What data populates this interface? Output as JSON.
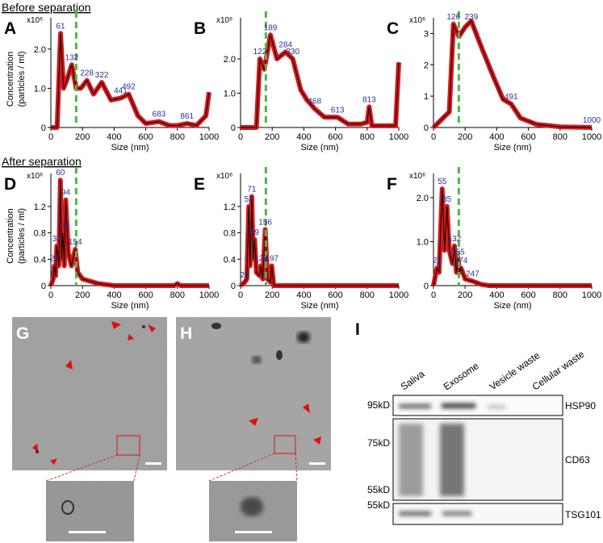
{
  "sections": [
    "Before separation",
    "After separation"
  ],
  "chart_data": [
    {
      "type": "line",
      "panel": "A",
      "ylabel": [
        "Concentration",
        "(particles / ml)"
      ],
      "xlabel": "Size (nm)",
      "y_multiplier": "x10⁶",
      "color": "#000000",
      "band_color": "#d7191c",
      "reference_line": {
        "x": 160,
        "color": "#4cb848"
      },
      "x": [
        0,
        40,
        61,
        80,
        100,
        132,
        160,
        190,
        228,
        270,
        322,
        380,
        441,
        492,
        550,
        600,
        683,
        750,
        800,
        861,
        920,
        980,
        1000
      ],
      "values": [
        0,
        0,
        2.4,
        1.0,
        1.2,
        1.6,
        1.0,
        1.0,
        1.2,
        0.85,
        1.15,
        0.7,
        0.75,
        0.85,
        0.3,
        0.1,
        0.15,
        0.05,
        0.05,
        0.1,
        0.05,
        0.3,
        0.9
      ],
      "peaks": [
        61,
        132,
        228,
        322,
        441,
        492,
        683,
        861
      ],
      "xlim": [
        0,
        1000
      ],
      "xticks": [
        0,
        200,
        400,
        600,
        800,
        1000
      ],
      "ylim": [
        0,
        2.8
      ],
      "yticks": [
        0,
        {
          "value": 1,
          "label": "1.0"
        },
        {
          "value": 2,
          "label": "2.0"
        }
      ]
    },
    {
      "type": "line",
      "panel": "B",
      "xlabel": "Size (nm)",
      "y_multiplier": "x10⁶",
      "color": "#000000",
      "band_color": "#d7191c",
      "reference_line": {
        "x": 160,
        "color": "#4cb848"
      },
      "x": [
        0,
        100,
        122,
        150,
        189,
        230,
        284,
        330,
        380,
        420,
        468,
        530,
        613,
        680,
        760,
        800,
        813,
        830,
        980,
        1000
      ],
      "values": [
        0,
        0,
        2.0,
        1.7,
        2.7,
        2.0,
        2.2,
        2.0,
        1.1,
        0.8,
        0.55,
        0.3,
        0.3,
        0.1,
        0.1,
        0.15,
        0.6,
        0.05,
        0.05,
        1.9
      ],
      "peaks": [
        122,
        189,
        284,
        330,
        468,
        613,
        813
      ],
      "xlim": [
        0,
        1000
      ],
      "xticks": [
        0,
        200,
        400,
        600,
        800,
        1000
      ],
      "ylim": [
        0,
        3.2
      ],
      "yticks": [
        0,
        {
          "value": 1,
          "label": "1.0"
        },
        {
          "value": 2,
          "label": "2.0"
        }
      ]
    },
    {
      "type": "line",
      "panel": "C",
      "xlabel": "Size (nm)",
      "y_multiplier": "x10⁶",
      "color": "#000000",
      "band_color": "#d7191c",
      "reference_line": {
        "x": 160,
        "color": "#4cb848"
      },
      "x": [
        0,
        100,
        126,
        160,
        200,
        239,
        300,
        380,
        440,
        491,
        550,
        650,
        800,
        1000
      ],
      "values": [
        0,
        0.5,
        3.3,
        2.9,
        3.2,
        3.4,
        2.6,
        1.6,
        0.9,
        0.75,
        0.3,
        0.1,
        0.02,
        0
      ],
      "peaks": [
        126,
        239,
        491,
        1000
      ],
      "xlim": [
        0,
        1000
      ],
      "xticks": [
        0,
        200,
        400,
        600,
        800,
        1000
      ],
      "ylim": [
        0,
        3.5
      ],
      "yticks": [
        0,
        1,
        2,
        3
      ]
    },
    {
      "type": "line",
      "panel": "D",
      "ylabel": [
        "Concentration",
        "(particles / ml)"
      ],
      "xlabel": "Size (nm)",
      "y_multiplier": "x10⁶",
      "color": "#000000",
      "band_color": "#d7191c",
      "reference_line": {
        "x": 160,
        "color": "#4cb848"
      },
      "x": [
        0,
        15,
        22,
        30,
        37,
        50,
        60,
        68,
        76,
        85,
        94,
        110,
        130,
        154,
        170,
        200,
        300,
        400,
        780,
        800,
        820,
        1000
      ],
      "values": [
        0,
        0.1,
        0.3,
        0.15,
        0.6,
        0.3,
        1.6,
        0.4,
        0.8,
        0.3,
        1.3,
        0.5,
        0.3,
        0.55,
        0.2,
        0.1,
        0.03,
        0,
        0,
        0.03,
        0,
        0
      ],
      "peaks": [
        22,
        37,
        60,
        76,
        94,
        154
      ],
      "xlim": [
        0,
        1000
      ],
      "xticks": [
        0,
        200,
        400,
        600,
        800,
        1000
      ],
      "ylim": [
        0,
        1.7
      ],
      "yticks": [
        0,
        0.4,
        0.8,
        1.2
      ]
    },
    {
      "type": "line",
      "panel": "E",
      "xlabel": "Size (nm)",
      "y_multiplier": "x10⁶",
      "color": "#000000",
      "band_color": "#d7191c",
      "reference_line": {
        "x": 160,
        "color": "#4cb848"
      },
      "x": [
        0,
        26,
        40,
        52,
        60,
        71,
        80,
        89,
        100,
        120,
        129,
        140,
        156,
        170,
        190,
        197,
        210,
        1000
      ],
      "values": [
        0,
        0.05,
        0.1,
        1.2,
        0.3,
        1.35,
        0.4,
        0.7,
        0.2,
        0.15,
        0.3,
        0.1,
        0.85,
        0.1,
        0.05,
        0.3,
        0,
        0
      ],
      "peaks": [
        26,
        52,
        71,
        89,
        129,
        156,
        197
      ],
      "xlim": [
        0,
        1000
      ],
      "xticks": [
        0,
        200,
        400,
        600,
        800,
        1000
      ],
      "ylim": [
        0,
        1.7
      ],
      "yticks": [
        0,
        0.4,
        0.8,
        1.2
      ]
    },
    {
      "type": "line",
      "panel": "F",
      "xlabel": "Size (nm)",
      "y_multiplier": "x10⁶",
      "color": "#000000",
      "band_color": "#d7191c",
      "reference_line": {
        "x": 160,
        "color": "#4cb848"
      },
      "x": [
        0,
        22,
        35,
        55,
        70,
        85,
        100,
        120,
        132,
        145,
        155,
        165,
        174,
        200,
        247,
        300,
        350,
        1000
      ],
      "values": [
        0,
        0.4,
        0.3,
        2.2,
        0.8,
        1.8,
        0.8,
        0.5,
        0.9,
        0.3,
        0.6,
        0.3,
        0.4,
        0.15,
        0.1,
        0.03,
        0,
        0
      ],
      "peaks": [
        22,
        55,
        85,
        132,
        155,
        174,
        247
      ],
      "xlim": [
        0,
        1000
      ],
      "xticks": [
        0,
        200,
        400,
        600,
        800,
        1000
      ],
      "ylim": [
        0,
        2.55
      ],
      "yticks": [
        0,
        {
          "value": 1,
          "label": "1.0"
        },
        {
          "value": 2,
          "label": "2.0"
        }
      ]
    }
  ],
  "micrographs": [
    {
      "panel": "G"
    },
    {
      "panel": "H"
    }
  ],
  "blot": {
    "panel": "I",
    "lanes": [
      "Saliva",
      "Exosome",
      "Vesicle waste",
      "Cellular waste"
    ],
    "markers": [
      "95kD",
      "75kD",
      "55kD",
      "55kD"
    ],
    "proteins": [
      "HSP90",
      "CD63",
      "TSG101"
    ]
  }
}
